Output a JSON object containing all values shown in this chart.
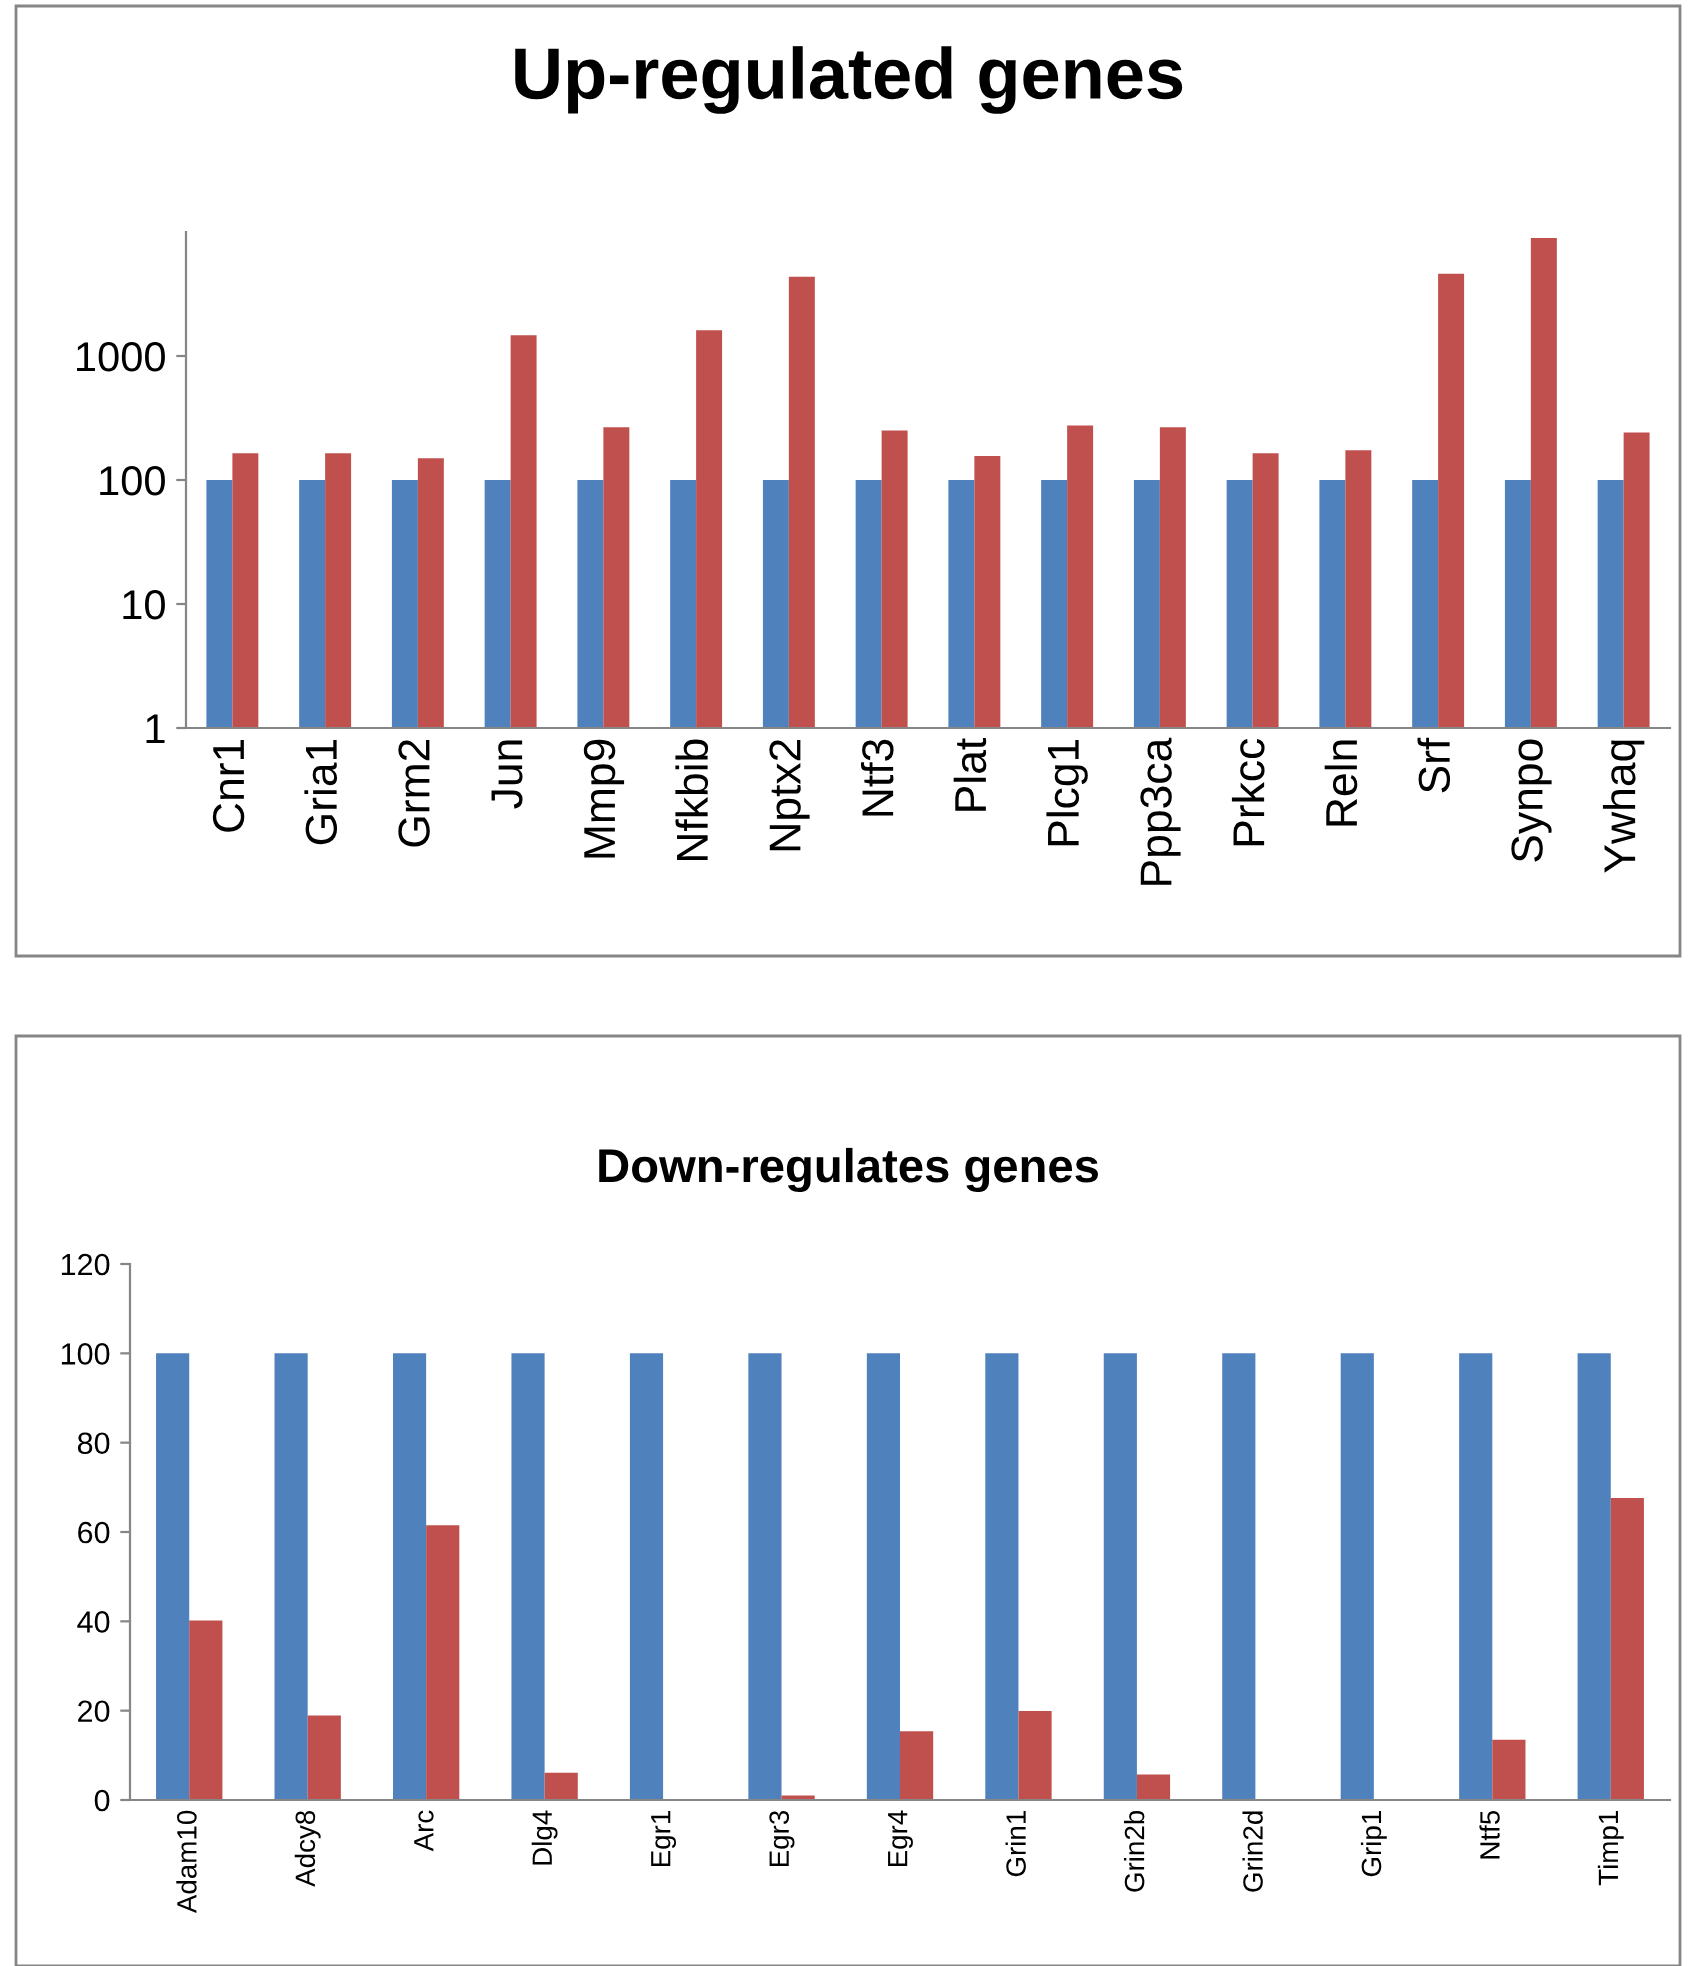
{
  "chart_data": [
    {
      "type": "bar",
      "title": "Up-regulated genes",
      "log": "y",
      "ylim": [
        1,
        10000
      ],
      "yticks": [
        1,
        10,
        100,
        1000
      ],
      "grid": false,
      "legend": false,
      "categories": [
        "Cnr1",
        "Gria1",
        "Grm2",
        "Jun",
        "Mmp9",
        "Nfkbib",
        "Nptx2",
        "Ntf3",
        "Plat",
        "Plcg1",
        "Ppp3ca",
        "Prkcc",
        "Reln",
        "Srf",
        "Synpo",
        "Ywhaq"
      ],
      "series": [
        {
          "color": "#4f81bd",
          "values": [
            100,
            100,
            100,
            100,
            100,
            100,
            100,
            100,
            100,
            100,
            100,
            100,
            100,
            100,
            100,
            100
          ]
        },
        {
          "color": "#c0504d",
          "values": [
            164,
            164,
            150,
            1470,
            266,
            1615,
            4365,
            251,
            156,
            275,
            266,
            164,
            174,
            4613,
            8954,
            242
          ]
        }
      ]
    },
    {
      "type": "bar",
      "title": "Down-regulates genes",
      "ylim": [
        0,
        120
      ],
      "yticks": [
        0,
        20,
        40,
        60,
        80,
        100,
        120
      ],
      "grid": false,
      "legend": false,
      "categories": [
        "Adam10",
        "Adcy8",
        "Arc",
        "Dlg4",
        "Egr1",
        "Egr3",
        "Egr4",
        "Grin1",
        "Grin2b",
        "Grin2d",
        "Grip1",
        "Ntf5",
        "Timp1"
      ],
      "series": [
        {
          "color": "#4f81bd",
          "values": [
            100,
            100,
            100,
            100,
            100,
            100,
            100,
            100,
            100,
            100,
            100,
            100,
            100
          ]
        },
        {
          "color": "#c0504d",
          "values": [
            40.2,
            18.9,
            61.5,
            6.1,
            0,
            1,
            15.4,
            19.9,
            5.7,
            0,
            0,
            13.5,
            67.6
          ]
        }
      ]
    }
  ]
}
